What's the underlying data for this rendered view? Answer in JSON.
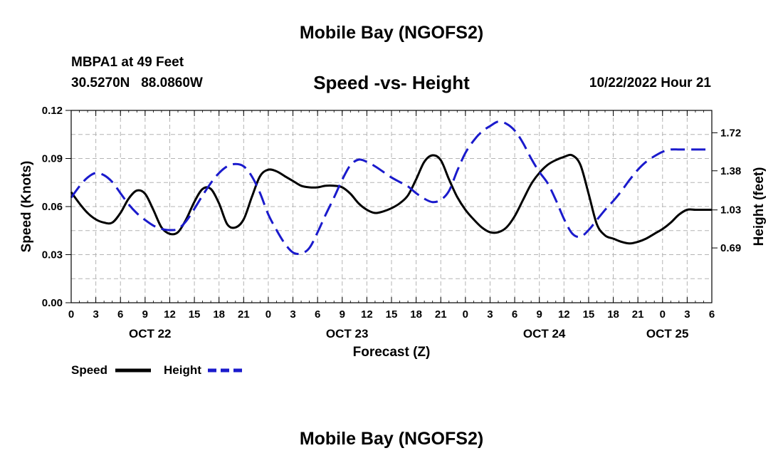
{
  "header": {
    "title": "Mobile Bay (NGOFS2)",
    "station": "MBPA1 at 49 Feet",
    "coords": "30.5270N   88.0860W",
    "chart_title": "Speed -vs- Height",
    "datetime": "10/22/2022 Hour 21"
  },
  "footer": {
    "title": "Mobile Bay (NGOFS2)"
  },
  "legend": {
    "speed_label": "Speed",
    "height_label": "Height"
  },
  "colors": {
    "speed": "#000000",
    "height": "#1a1acc",
    "grid": "#b4b4b4"
  },
  "chart_data": {
    "type": "line",
    "xlabel": "Forecast (Z)",
    "ylabel_left": "Speed (Knots)",
    "ylabel_right": "Height (feet)",
    "x_unit": "hours",
    "xlim": [
      0,
      78
    ],
    "x_ticks": [
      0,
      3,
      6,
      9,
      12,
      15,
      18,
      21,
      24,
      27,
      30,
      33,
      36,
      39,
      42,
      45,
      48,
      51,
      54,
      57,
      60,
      63,
      66,
      69,
      72,
      75,
      78
    ],
    "x_tick_labels": [
      "0",
      "3",
      "6",
      "9",
      "12",
      "15",
      "18",
      "21",
      "0",
      "3",
      "6",
      "9",
      "12",
      "15",
      "18",
      "21",
      "0",
      "3",
      "6",
      "9",
      "12",
      "15",
      "18",
      "21",
      "0",
      "3",
      "6"
    ],
    "date_labels": [
      {
        "text": "OCT 22",
        "x": 9.6
      },
      {
        "text": "OCT 23",
        "x": 33.6
      },
      {
        "text": "OCT 24",
        "x": 57.6
      },
      {
        "text": "OCT 25",
        "x": 72.6
      }
    ],
    "ylim_left": [
      0,
      0.12
    ],
    "y_ticks_left": [
      0.0,
      0.03,
      0.06,
      0.09,
      0.12
    ],
    "y_tick_labels_left": [
      "0.00",
      "0.03",
      "0.06",
      "0.09",
      "0.12"
    ],
    "ylim_right": [
      0.2,
      1.92
    ],
    "y_ticks_right": [
      0.69,
      1.03,
      1.38,
      1.72
    ],
    "y_tick_labels_right": [
      "0.69",
      "1.03",
      "1.38",
      "1.72"
    ],
    "grid": true,
    "series": [
      {
        "name": "Speed",
        "axis": "left",
        "style": "solid",
        "x": [
          0,
          1,
          2,
          3,
          4,
          5,
          6,
          7,
          8,
          9,
          10,
          11,
          12,
          13,
          14,
          15,
          16,
          17,
          18,
          19,
          20,
          21,
          22,
          23,
          24,
          25,
          26,
          27,
          28,
          29,
          30,
          31,
          32,
          33,
          34,
          35,
          36,
          37,
          38,
          39,
          40,
          41,
          42,
          43,
          44,
          45,
          46,
          47,
          48,
          49,
          50,
          51,
          52,
          53,
          54,
          55,
          56,
          57,
          58,
          59,
          60,
          61,
          62,
          63,
          64,
          65,
          66,
          67,
          68,
          69,
          70,
          71,
          72,
          73,
          74,
          75,
          76,
          77,
          78
        ],
        "values": [
          0.069,
          0.062,
          0.056,
          0.052,
          0.05,
          0.05,
          0.056,
          0.065,
          0.07,
          0.068,
          0.058,
          0.047,
          0.043,
          0.044,
          0.052,
          0.063,
          0.071,
          0.071,
          0.062,
          0.049,
          0.047,
          0.052,
          0.066,
          0.079,
          0.083,
          0.082,
          0.079,
          0.076,
          0.073,
          0.072,
          0.072,
          0.073,
          0.073,
          0.072,
          0.068,
          0.062,
          0.058,
          0.056,
          0.057,
          0.059,
          0.062,
          0.067,
          0.077,
          0.088,
          0.092,
          0.089,
          0.077,
          0.066,
          0.058,
          0.052,
          0.047,
          0.044,
          0.044,
          0.047,
          0.054,
          0.064,
          0.074,
          0.081,
          0.086,
          0.089,
          0.091,
          0.092,
          0.086,
          0.068,
          0.049,
          0.042,
          0.04,
          0.038,
          0.037,
          0.038,
          0.04,
          0.043,
          0.046,
          0.05,
          0.055,
          0.058,
          0.058,
          0.058,
          0.058
        ]
      },
      {
        "name": "Height",
        "axis": "right",
        "style": "dashed",
        "x": [
          0,
          1,
          2,
          3,
          4,
          5,
          6,
          7,
          8,
          9,
          10,
          11,
          12,
          13,
          14,
          15,
          16,
          17,
          18,
          19,
          20,
          21,
          22,
          23,
          24,
          25,
          26,
          27,
          28,
          29,
          30,
          31,
          32,
          33,
          34,
          35,
          36,
          37,
          38,
          39,
          40,
          41,
          42,
          43,
          44,
          45,
          46,
          47,
          48,
          49,
          50,
          51,
          52,
          53,
          54,
          55,
          56,
          57,
          58,
          59,
          60,
          61,
          62,
          63,
          64,
          65,
          66,
          67,
          68,
          69,
          70,
          71,
          72,
          73,
          74,
          75,
          76,
          77,
          78
        ],
        "values": [
          1.14,
          1.24,
          1.32,
          1.36,
          1.34,
          1.28,
          1.18,
          1.08,
          1.0,
          0.94,
          0.89,
          0.86,
          0.85,
          0.86,
          0.93,
          1.04,
          1.16,
          1.27,
          1.36,
          1.42,
          1.44,
          1.42,
          1.33,
          1.18,
          0.99,
          0.85,
          0.73,
          0.65,
          0.64,
          0.69,
          0.83,
          0.99,
          1.14,
          1.3,
          1.43,
          1.48,
          1.46,
          1.42,
          1.37,
          1.32,
          1.28,
          1.24,
          1.18,
          1.13,
          1.1,
          1.12,
          1.2,
          1.38,
          1.54,
          1.65,
          1.73,
          1.78,
          1.82,
          1.8,
          1.74,
          1.63,
          1.49,
          1.37,
          1.27,
          1.12,
          0.95,
          0.82,
          0.79,
          0.85,
          0.94,
          1.03,
          1.11,
          1.2,
          1.3,
          1.39,
          1.46,
          1.51,
          1.55,
          1.57,
          1.57,
          1.57,
          1.57,
          1.57,
          1.57
        ]
      }
    ]
  }
}
